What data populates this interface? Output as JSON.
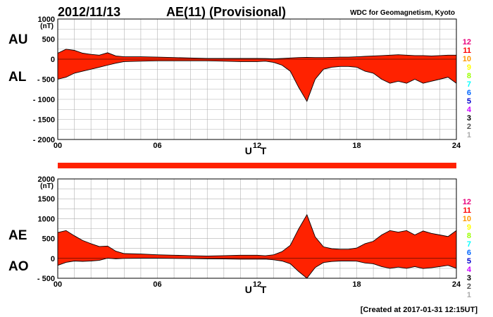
{
  "header": {
    "date": "2012/11/13",
    "title": "AE(11) (Provisional)",
    "source": "WDC for Geomagnetism, Kyoto"
  },
  "footer": {
    "created": "[Created at 2017-01-31 12:15UT]"
  },
  "station_legend": {
    "labels": [
      "12",
      "11",
      "10",
      "9",
      "8",
      "7",
      "6",
      "5",
      "4",
      "3",
      "2",
      "1"
    ],
    "colors": [
      "#e8007c",
      "#ff0000",
      "#ff9900",
      "#ffff00",
      "#99ff00",
      "#00ffff",
      "#0066ff",
      "#0000cc",
      "#cc00ff",
      "#000000",
      "#555555",
      "#aaaaaa"
    ]
  },
  "fill_color": "#ff2200",
  "band_color": "#ff2200",
  "chart_data": [
    {
      "type": "area",
      "side_labels": [
        "AU",
        "AL"
      ],
      "unit": "(nT)",
      "xlabel": "U T",
      "xlim": [
        0,
        24
      ],
      "xticks": [
        "00",
        "06",
        "12",
        "18",
        "24"
      ],
      "ylim": [
        -2000,
        1000
      ],
      "yticks": [
        "1000",
        "500",
        "0",
        "- 500",
        "- 1000",
        "- 1500",
        "- 2000"
      ],
      "series": [
        {
          "name": "AU",
          "x": [
            0,
            0.5,
            1,
            1.5,
            2,
            2.5,
            3,
            3.5,
            4,
            5,
            6,
            7,
            8,
            9,
            10,
            11,
            12,
            12.5,
            13,
            13.5,
            14,
            14.5,
            15,
            15.5,
            16,
            16.5,
            17,
            17.5,
            18,
            18.5,
            19,
            19.5,
            20,
            20.5,
            21,
            21.5,
            22,
            22.5,
            23,
            23.5,
            24
          ],
          "values": [
            150,
            250,
            220,
            150,
            120,
            100,
            160,
            80,
            60,
            60,
            50,
            40,
            30,
            20,
            20,
            20,
            20,
            15,
            10,
            20,
            30,
            40,
            45,
            40,
            40,
            45,
            50,
            50,
            60,
            70,
            80,
            90,
            100,
            110,
            100,
            90,
            90,
            80,
            90,
            100,
            100
          ]
        },
        {
          "name": "AL",
          "x": [
            0,
            0.5,
            1,
            1.5,
            2,
            2.5,
            3,
            3.5,
            4,
            5,
            6,
            7,
            8,
            9,
            10,
            11,
            12,
            12.5,
            13,
            13.5,
            14,
            14.5,
            15,
            15.5,
            16,
            16.5,
            17,
            17.5,
            18,
            18.5,
            19,
            19.5,
            20,
            20.5,
            21,
            21.5,
            22,
            22.5,
            23,
            23.5,
            24
          ],
          "values": [
            -500,
            -450,
            -350,
            -300,
            -250,
            -200,
            -150,
            -100,
            -60,
            -50,
            -40,
            -40,
            -40,
            -40,
            -50,
            -60,
            -60,
            -50,
            -80,
            -150,
            -300,
            -700,
            -1050,
            -500,
            -250,
            -200,
            -180,
            -180,
            -200,
            -300,
            -350,
            -500,
            -600,
            -550,
            -600,
            -500,
            -600,
            -550,
            -500,
            -450,
            -600
          ]
        }
      ]
    },
    {
      "type": "area",
      "side_labels": [
        "AE",
        "AO"
      ],
      "unit": "(nT)",
      "xlabel": "U T",
      "xlim": [
        0,
        24
      ],
      "xticks": [
        "00",
        "06",
        "12",
        "18",
        "24"
      ],
      "ylim": [
        -500,
        2000
      ],
      "yticks": [
        "2000",
        "1500",
        "1000",
        "500",
        "0",
        "- 500"
      ],
      "series": [
        {
          "name": "AE",
          "x": [
            0,
            0.5,
            1,
            1.5,
            2,
            2.5,
            3,
            3.5,
            4,
            5,
            6,
            7,
            8,
            9,
            10,
            11,
            12,
            12.5,
            13,
            13.5,
            14,
            14.5,
            15,
            15.5,
            16,
            16.5,
            17,
            17.5,
            18,
            18.5,
            19,
            19.5,
            20,
            20.5,
            21,
            21.5,
            22,
            22.5,
            23,
            23.5,
            24
          ],
          "values": [
            650,
            700,
            570,
            450,
            370,
            300,
            310,
            180,
            120,
            110,
            90,
            80,
            70,
            60,
            70,
            80,
            80,
            65,
            90,
            170,
            330,
            740,
            1100,
            540,
            290,
            245,
            230,
            230,
            260,
            370,
            430,
            590,
            700,
            660,
            700,
            590,
            690,
            630,
            590,
            550,
            700
          ]
        },
        {
          "name": "AO",
          "x": [
            0,
            0.5,
            1,
            1.5,
            2,
            2.5,
            3,
            3.5,
            4,
            5,
            6,
            7,
            8,
            9,
            10,
            11,
            12,
            12.5,
            13,
            13.5,
            14,
            14.5,
            15,
            15.5,
            16,
            16.5,
            17,
            17.5,
            18,
            18.5,
            19,
            19.5,
            20,
            20.5,
            21,
            21.5,
            22,
            22.5,
            23,
            23.5,
            24
          ],
          "values": [
            -175,
            -100,
            -65,
            -75,
            -65,
            -50,
            5,
            -10,
            0,
            5,
            5,
            0,
            -5,
            -10,
            -15,
            -20,
            -20,
            -18,
            -35,
            -65,
            -135,
            -330,
            -500,
            -230,
            -105,
            -78,
            -65,
            -65,
            -70,
            -115,
            -135,
            -205,
            -250,
            -220,
            -250,
            -205,
            -255,
            -235,
            -205,
            -175,
            -250
          ]
        }
      ]
    }
  ]
}
